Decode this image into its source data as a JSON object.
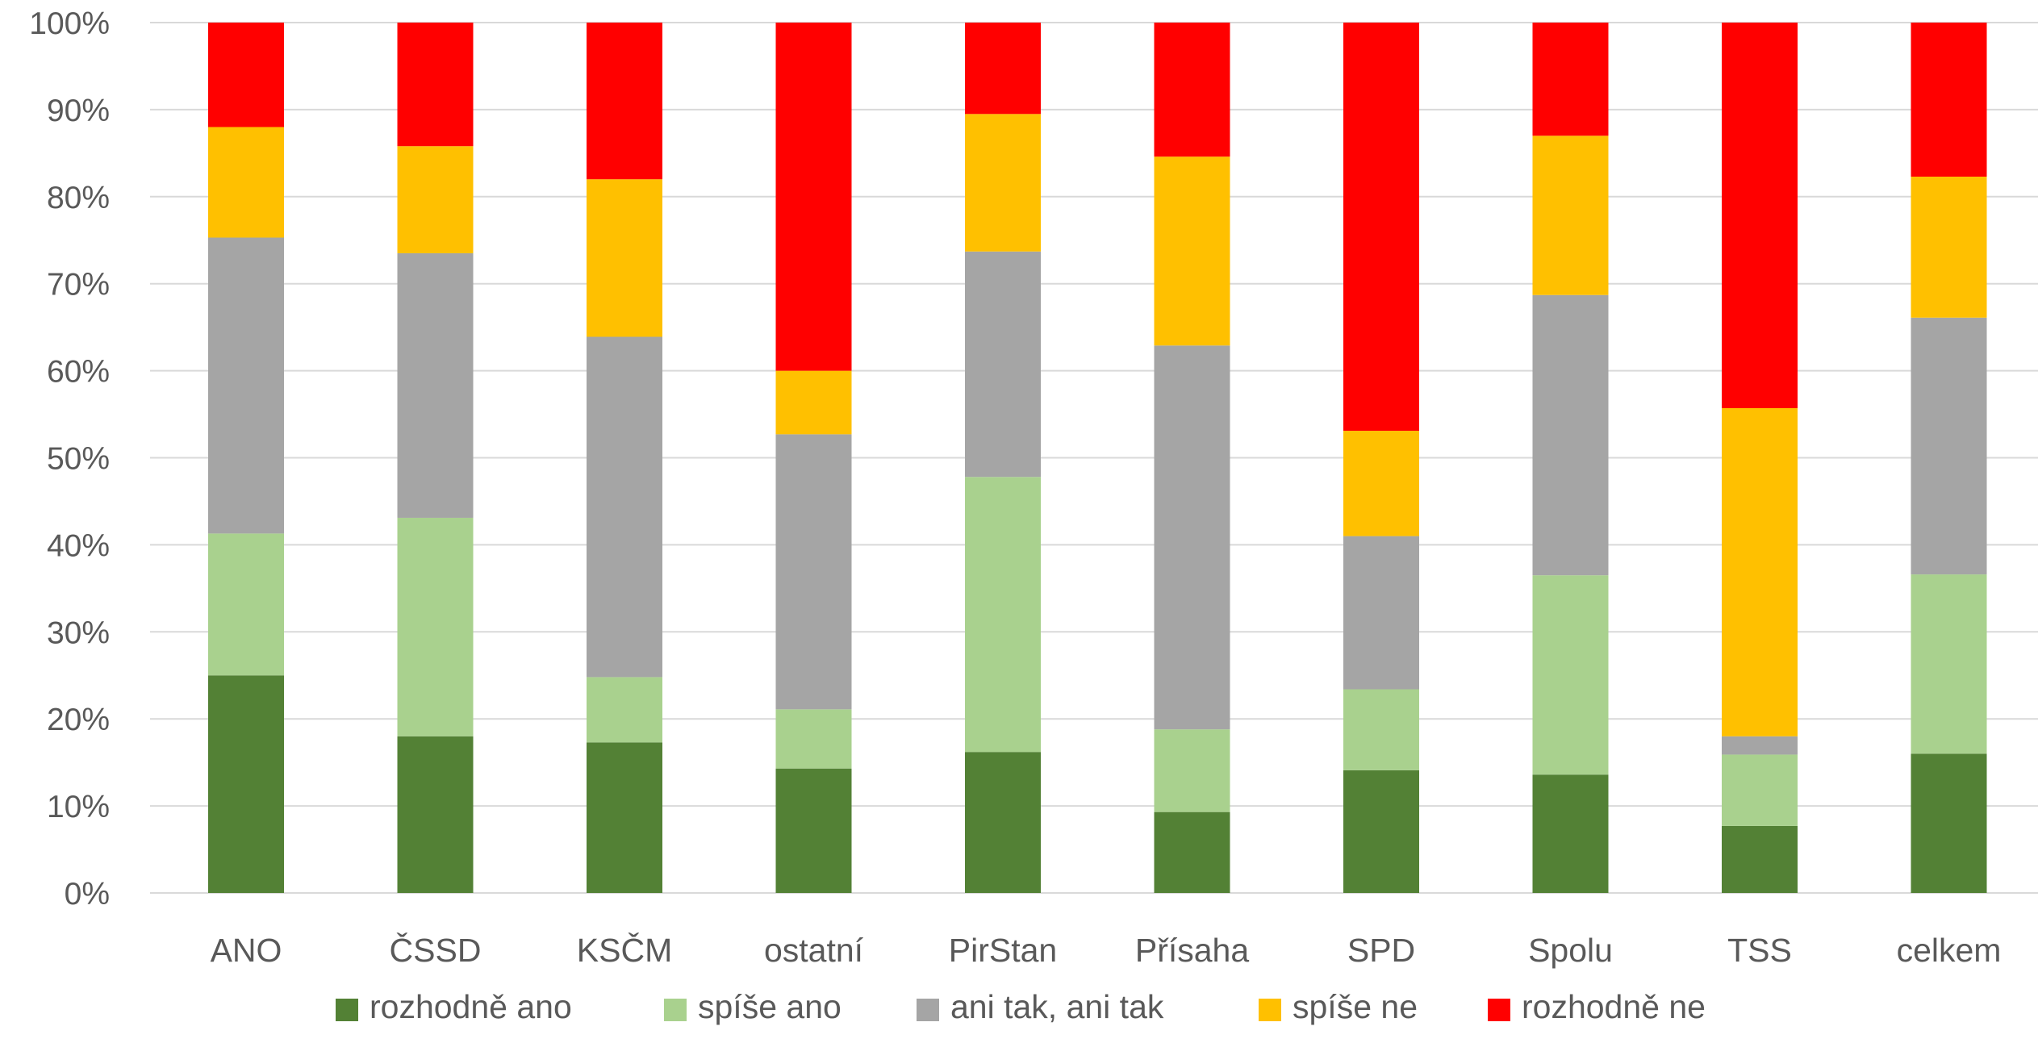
{
  "chart_data": {
    "type": "bar",
    "stacked": true,
    "stack_mode": "percent",
    "title": "",
    "xlabel": "",
    "ylabel": "",
    "ylim": [
      0,
      100
    ],
    "yticks": [
      "0%",
      "10%",
      "20%",
      "30%",
      "40%",
      "50%",
      "60%",
      "70%",
      "80%",
      "90%",
      "100%"
    ],
    "grid": true,
    "legend_position": "bottom",
    "categories": [
      "ANO",
      "ČSSD",
      "KSČM",
      "ostatní",
      "PirStan",
      "Přísaha",
      "SPD",
      "Spolu",
      "TSS",
      "celkem"
    ],
    "series": [
      {
        "name": "rozhodně ano",
        "color": "#538135",
        "values": [
          25.0,
          18.0,
          17.3,
          14.3,
          16.2,
          9.3,
          14.1,
          13.6,
          7.7,
          16.0
        ]
      },
      {
        "name": "spíše ano",
        "color": "#a9d18e",
        "values": [
          16.3,
          25.1,
          7.5,
          6.8,
          31.6,
          9.5,
          9.3,
          22.9,
          8.2,
          20.6
        ]
      },
      {
        "name": "ani tak, ani tak",
        "color": "#a5a5a5",
        "values": [
          34.0,
          30.4,
          39.1,
          31.6,
          25.9,
          44.1,
          17.6,
          32.2,
          2.1,
          29.5
        ]
      },
      {
        "name": "spíše ne",
        "color": "#ffc000",
        "values": [
          12.7,
          12.3,
          18.1,
          7.3,
          15.8,
          21.7,
          12.1,
          18.3,
          37.7,
          16.2
        ]
      },
      {
        "name": "rozhodně ne",
        "color": "#ff0000",
        "values": [
          12.0,
          14.2,
          18.0,
          40.0,
          10.5,
          15.4,
          46.9,
          13.0,
          44.3,
          17.7
        ]
      }
    ]
  }
}
